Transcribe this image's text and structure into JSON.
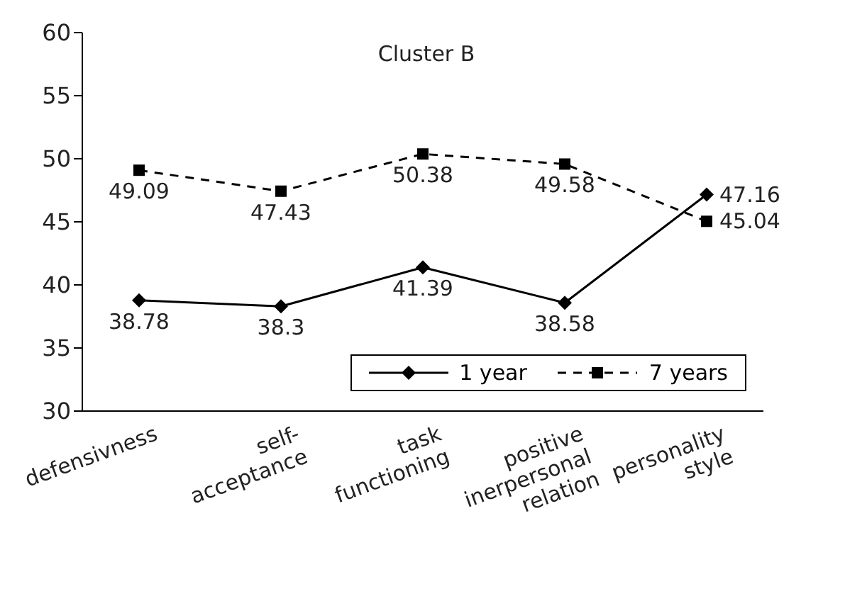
{
  "chart_data": {
    "type": "line",
    "title": "Cluster B",
    "categories": [
      "defensivness",
      "self-\nacceptance",
      "task\nfunctioning",
      "positive\ninerpersonal\nrelation",
      "personality\nstyle"
    ],
    "series": [
      {
        "name": "1 year",
        "color": "#000000",
        "values": [
          38.78,
          38.3,
          41.39,
          38.58,
          47.16
        ],
        "marker": "diamond",
        "line_style": "solid"
      },
      {
        "name": "7 years",
        "color": "#000000",
        "values": [
          49.09,
          47.43,
          50.38,
          49.58,
          45.04
        ],
        "marker": "square",
        "line_style": "dashed"
      }
    ],
    "ylim": [
      30,
      60
    ],
    "yticks": [
      30,
      35,
      40,
      45,
      50,
      55,
      60
    ],
    "grid": false,
    "legend": "bottom right",
    "data_labels": true
  }
}
